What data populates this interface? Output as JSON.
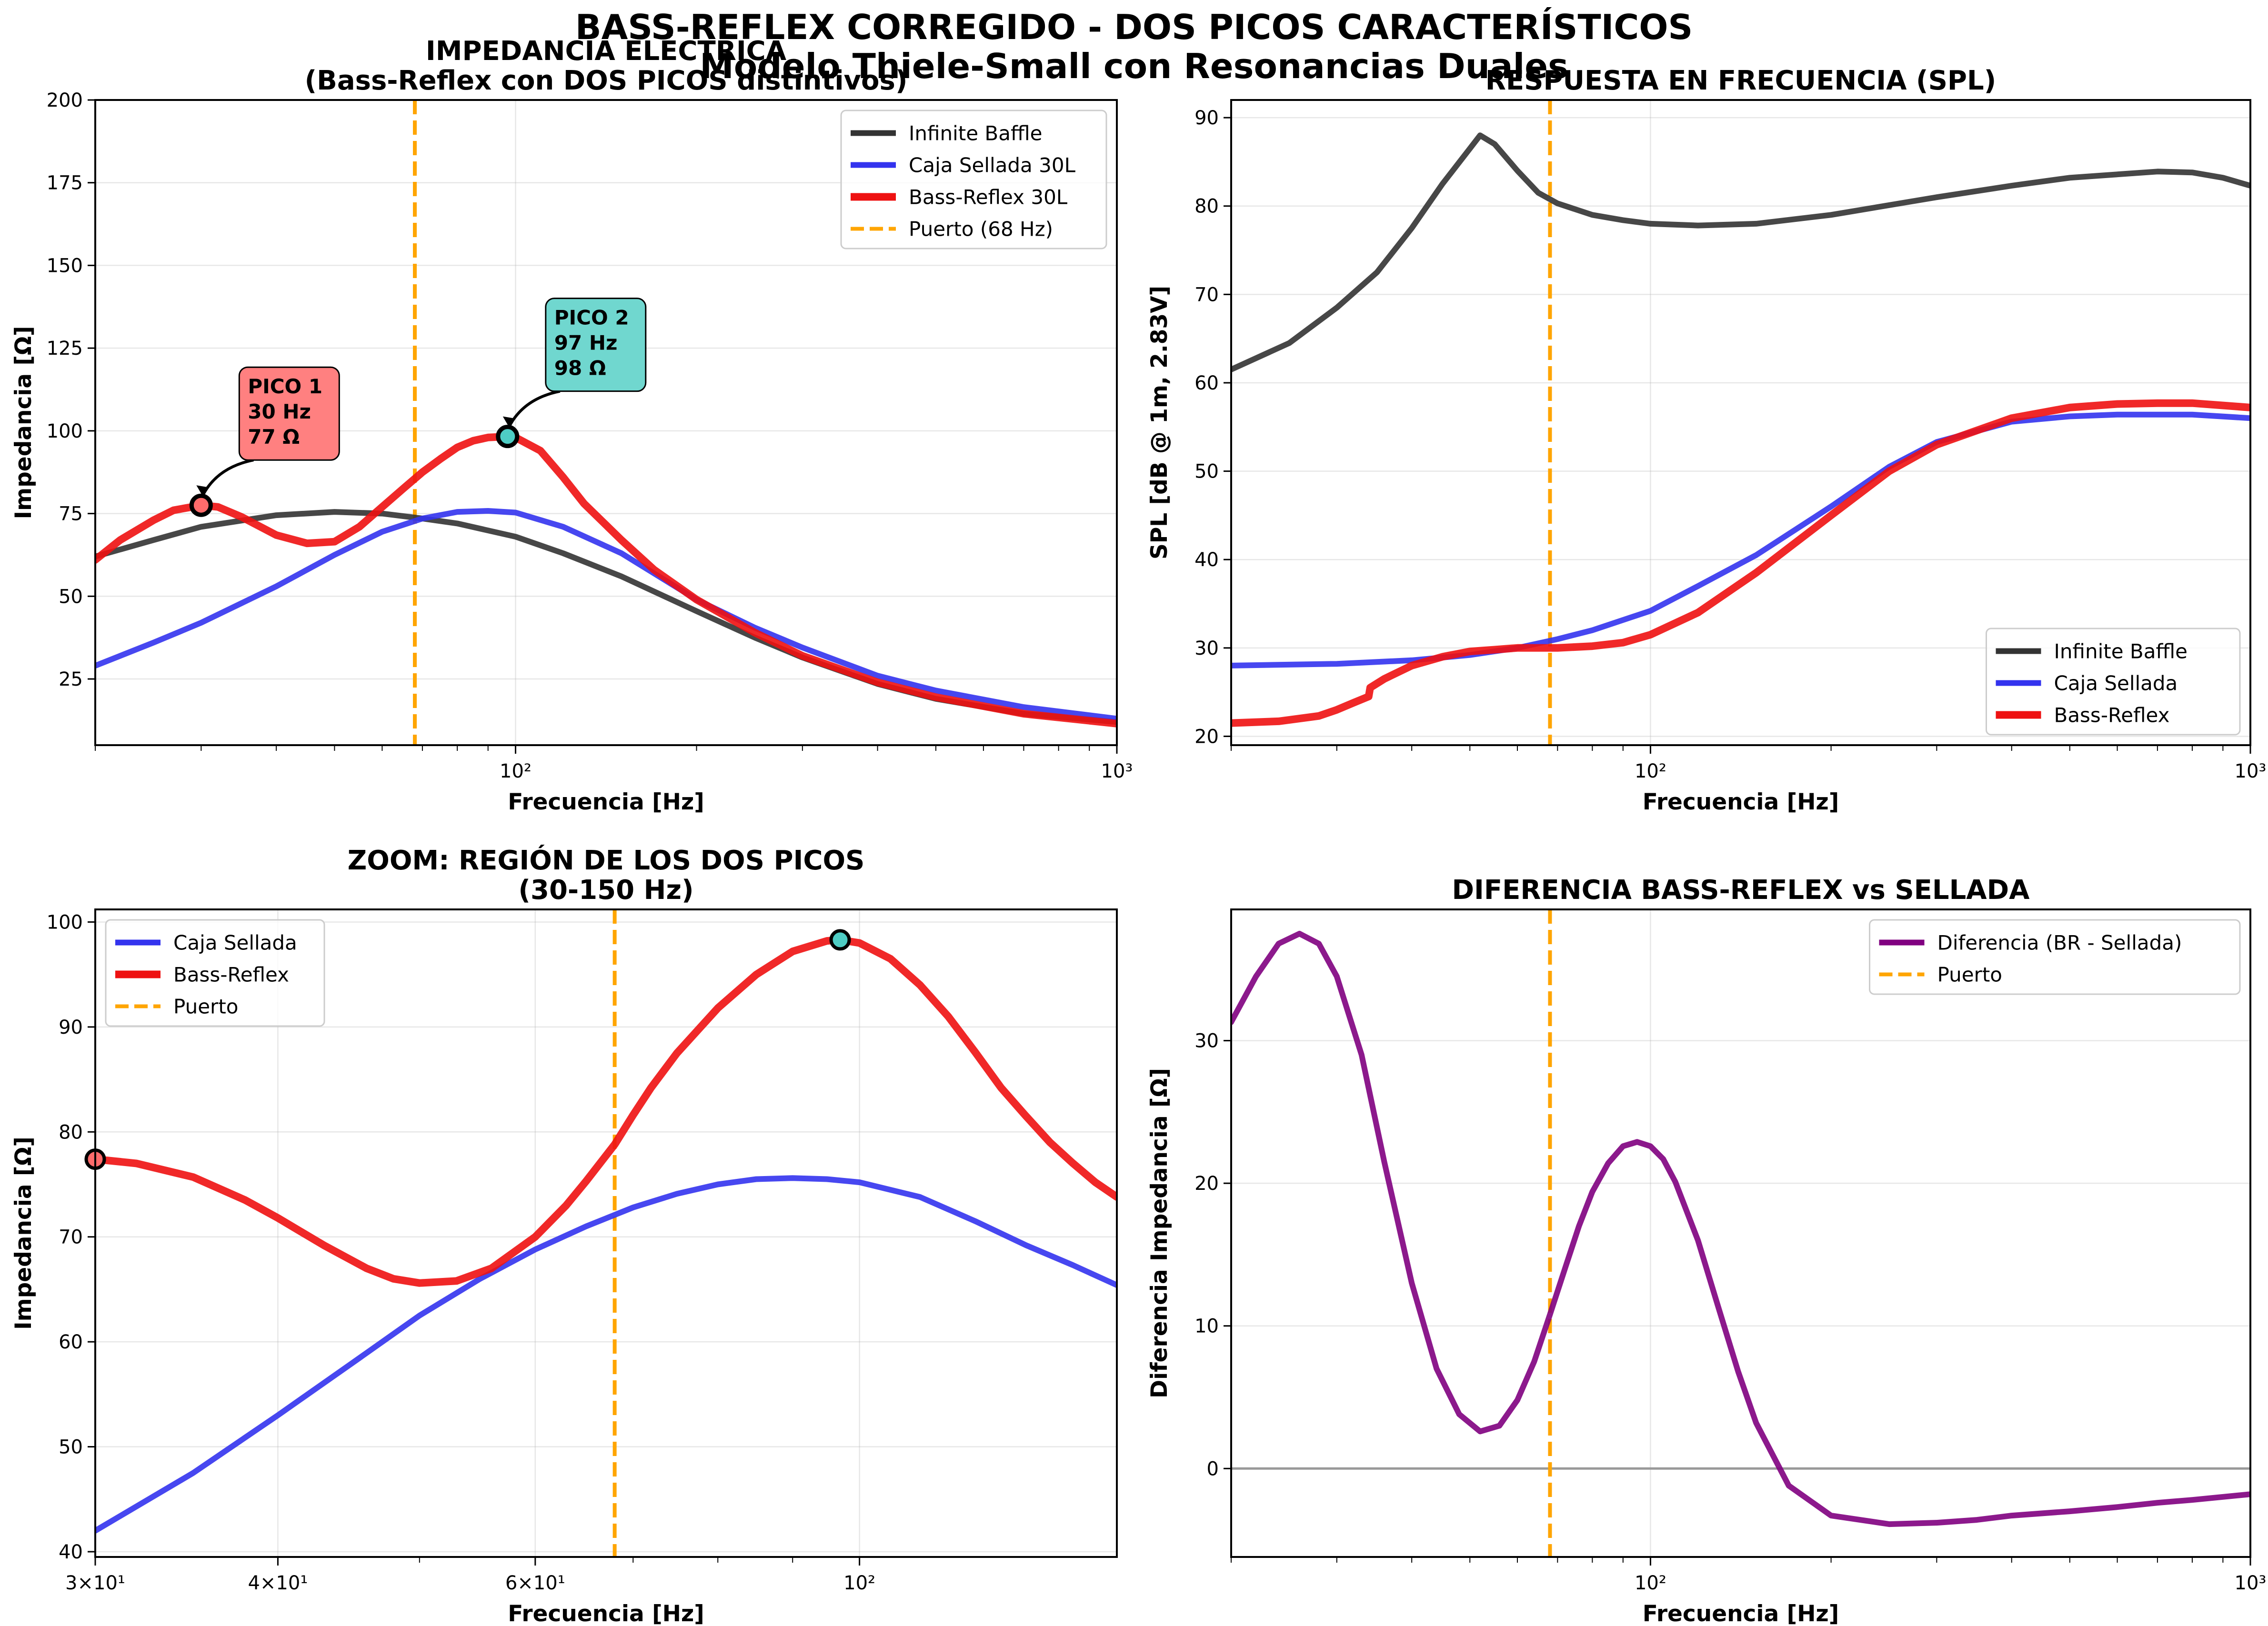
{
  "figure": {
    "suptitle": [
      "BASS-REFLEX CORREGIDO - DOS PICOS CARACTERÍSTICOS",
      "Modelo Thiele-Small con Resonancias Duales"
    ]
  },
  "chart_data": [
    {
      "type": "line",
      "title": [
        "IMPEDANCIA ELÉCTRICA",
        "(Bass-Reflex con DOS PICOS distintivos)"
      ],
      "xlabel": "Frecuencia [Hz]",
      "ylabel": "Impedancia [Ω]",
      "xscale": "log",
      "xlim": [
        20,
        1000
      ],
      "ylim": [
        5,
        200
      ],
      "yticks": [
        25,
        50,
        75,
        100,
        125,
        150,
        175,
        200
      ],
      "xticks": [
        {
          "value": 100,
          "label": "10²"
        },
        {
          "value": 1000,
          "label": "10³"
        }
      ],
      "grid": true,
      "legend": "top-right",
      "vline": {
        "x": 68,
        "name": "Puerto (68 Hz)",
        "color": "#FFA500"
      },
      "series": [
        {
          "name": "Infinite Baffle",
          "color": "#333333",
          "width": 12,
          "x": [
            20,
            25,
            30,
            40,
            50,
            60,
            70,
            80,
            100,
            120,
            150,
            200,
            250,
            300,
            400,
            500,
            700,
            1000
          ],
          "y": [
            62,
            67,
            71,
            74.5,
            75.5,
            75,
            73.5,
            72,
            68,
            63,
            56,
            45.5,
            37.5,
            31.5,
            23.5,
            19,
            14.5,
            12
          ]
        },
        {
          "name": "Caja Sellada 30L",
          "color": "#3333EE",
          "width": 12,
          "x": [
            20,
            25,
            30,
            40,
            50,
            60,
            70,
            80,
            90,
            100,
            120,
            150,
            200,
            250,
            300,
            400,
            500,
            700,
            1000
          ],
          "y": [
            29,
            36,
            42,
            53,
            62.5,
            69.5,
            73.5,
            75.5,
            75.8,
            75.3,
            71,
            63,
            49,
            40.5,
            34.5,
            26,
            21.5,
            16.5,
            13
          ]
        },
        {
          "name": "Bass-Reflex 30L",
          "color": "#EE1111",
          "width": 16,
          "x": [
            20,
            22,
            25,
            27,
            30,
            32,
            35,
            40,
            45,
            50,
            55,
            60,
            65,
            70,
            75,
            80,
            85,
            90,
            97,
            100,
            110,
            120,
            130,
            150,
            170,
            200,
            250,
            300,
            400,
            500,
            700,
            1000
          ],
          "y": [
            61,
            67,
            73,
            76,
            77.5,
            77,
            74,
            68.5,
            66,
            66.5,
            71,
            77,
            82.5,
            87.5,
            91.5,
            95,
            97,
            98,
            98.3,
            98,
            94,
            86,
            78,
            67,
            58,
            49,
            39,
            32,
            24,
            19.5,
            14.5,
            11.5
          ]
        }
      ],
      "annotations": [
        {
          "lines": [
            "PICO 1",
            "30 Hz",
            "77 Ω"
          ],
          "x": 30,
          "y": 77.5,
          "color": "#FF8080"
        },
        {
          "lines": [
            "PICO 2",
            "97 Hz",
            "98 Ω"
          ],
          "x": 97,
          "y": 98.3,
          "color": "#70D7CF"
        }
      ]
    },
    {
      "type": "line",
      "title": [
        "RESPUESTA EN FRECUENCIA (SPL)"
      ],
      "xlabel": "Frecuencia [Hz]",
      "ylabel": "SPL [dB @ 1m, 2.83V]",
      "xscale": "log",
      "xlim": [
        20,
        1000
      ],
      "ylim": [
        19,
        92
      ],
      "yticks": [
        20,
        30,
        40,
        50,
        60,
        70,
        80,
        90
      ],
      "xticks": [
        {
          "value": 100,
          "label": "10²"
        },
        {
          "value": 1000,
          "label": "10³"
        }
      ],
      "grid": true,
      "legend": "lower-right",
      "vline": {
        "x": 68,
        "name": "",
        "color": "#FFA500"
      },
      "series": [
        {
          "name": "Infinite Baffle",
          "color": "#333333",
          "width": 12,
          "x": [
            20,
            25,
            30,
            35,
            40,
            45,
            50,
            52,
            55,
            60,
            65,
            70,
            80,
            90,
            100,
            120,
            150,
            200,
            300,
            400,
            500,
            700,
            800,
            900,
            1000
          ],
          "y": [
            61.5,
            64.5,
            68.5,
            72.5,
            77.5,
            82.5,
            86.5,
            88,
            87,
            84,
            81.5,
            80.3,
            79,
            78.4,
            78,
            77.8,
            78,
            79,
            81,
            82.3,
            83.2,
            83.9,
            83.8,
            83.2,
            82.3
          ]
        },
        {
          "name": "Caja Sellada",
          "color": "#3333EE",
          "width": 12,
          "x": [
            20,
            30,
            40,
            50,
            60,
            70,
            80,
            100,
            120,
            150,
            200,
            250,
            300,
            400,
            500,
            600,
            700,
            800,
            1000
          ],
          "y": [
            28,
            28.2,
            28.6,
            29.2,
            30,
            31,
            32,
            34.2,
            37,
            40.5,
            46,
            50.5,
            53.3,
            55.6,
            56.2,
            56.4,
            56.4,
            56.4,
            56
          ]
        },
        {
          "name": "Bass-Reflex",
          "color": "#EE1111",
          "width": 16,
          "x": [
            20,
            24,
            28,
            30,
            32,
            33.9,
            34.1,
            36,
            40,
            45,
            50,
            55,
            60,
            65,
            70,
            80,
            90,
            100,
            120,
            150,
            200,
            250,
            300,
            400,
            500,
            600,
            700,
            800,
            1000
          ],
          "y": [
            21.5,
            21.7,
            22.3,
            23,
            23.8,
            24.5,
            25.5,
            26.5,
            28,
            29,
            29.6,
            29.8,
            30,
            30,
            30,
            30.2,
            30.6,
            31.5,
            34,
            38.5,
            45,
            50,
            53,
            56,
            57.2,
            57.6,
            57.7,
            57.7,
            57.2
          ]
        }
      ]
    },
    {
      "type": "line",
      "title": [
        "ZOOM: REGIÓN DE LOS DOS PICOS",
        "(30-150 Hz)"
      ],
      "xlabel": "Frecuencia [Hz]",
      "ylabel": "Impedancia [Ω]",
      "xscale": "log",
      "xlim": [
        30,
        150
      ],
      "ylim": [
        39.5,
        101.2
      ],
      "yticks": [
        40,
        50,
        60,
        70,
        80,
        90,
        100
      ],
      "xticks": [
        {
          "value": 30,
          "label": "3×10¹"
        },
        {
          "value": 40,
          "label": "4×10¹"
        },
        {
          "value": 60,
          "label": "6×10¹"
        },
        {
          "value": 100,
          "label": "10²"
        }
      ],
      "grid": true,
      "legend": "top-left",
      "vline": {
        "x": 68,
        "name": "Puerto",
        "color": "#FFA500"
      },
      "series": [
        {
          "name": "Caja Sellada",
          "color": "#3333EE",
          "width": 12,
          "x": [
            30,
            35,
            40,
            45,
            50,
            55,
            60,
            65,
            70,
            75,
            80,
            85,
            90,
            95,
            100,
            110,
            120,
            130,
            140,
            150
          ],
          "y": [
            42,
            47.5,
            53,
            58,
            62.5,
            66,
            68.8,
            71,
            72.8,
            74.1,
            75,
            75.5,
            75.6,
            75.5,
            75.2,
            73.8,
            71.5,
            69.2,
            67.3,
            65.4
          ]
        },
        {
          "name": "Bass-Reflex",
          "color": "#EE1111",
          "width": 16,
          "x": [
            30,
            32,
            35,
            38,
            40,
            43,
            46,
            48,
            50,
            53,
            56,
            60,
            63,
            65,
            68,
            70,
            72,
            75,
            80,
            85,
            90,
            95,
            97,
            100,
            105,
            110,
            115,
            120,
            125,
            130,
            135,
            140,
            145,
            150
          ],
          "y": [
            77.4,
            77,
            75.7,
            73.5,
            71.8,
            69.2,
            67,
            66,
            65.6,
            65.8,
            67,
            70,
            73,
            75.3,
            78.8,
            81.6,
            84.2,
            87.5,
            91.8,
            95,
            97.2,
            98.2,
            98.3,
            98,
            96.5,
            94,
            91,
            87.6,
            84.2,
            81.5,
            79,
            77,
            75.2,
            73.8
          ]
        }
      ],
      "markers": [
        {
          "x": 30,
          "y": 77.4,
          "color": "#FF6B6B"
        },
        {
          "x": 97,
          "y": 98.3,
          "color": "#4ECDC4"
        }
      ]
    },
    {
      "type": "line",
      "title": [
        "DIFERENCIA BASS-REFLEX vs SELLADA"
      ],
      "xlabel": "Frecuencia [Hz]",
      "ylabel": "Diferencia Impedancia [Ω]",
      "xscale": "log",
      "xlim": [
        20,
        1000
      ],
      "ylim": [
        -6.2,
        39.2
      ],
      "yticks": [
        0,
        10,
        20,
        30
      ],
      "xticks": [
        {
          "value": 100,
          "label": "10²"
        },
        {
          "value": 1000,
          "label": "10³"
        }
      ],
      "grid": true,
      "legend": "top-right",
      "hline": {
        "y": 0,
        "color": "#999999"
      },
      "vline": {
        "x": 68,
        "name": "Puerto",
        "color": "#FFA500"
      },
      "series": [
        {
          "name": "Diferencia (BR - Sellada)",
          "color": "#800080",
          "width": 12,
          "x": [
            20,
            22,
            24,
            26,
            28,
            30,
            33,
            36,
            40,
            44,
            48,
            52,
            56,
            60,
            64,
            68,
            72,
            76,
            80,
            85,
            90,
            95,
            100,
            105,
            110,
            120,
            130,
            140,
            150,
            170,
            200,
            250,
            300,
            350,
            400,
            500,
            600,
            700,
            800,
            1000
          ],
          "y": [
            31.3,
            34.5,
            36.8,
            37.5,
            36.8,
            34.5,
            29,
            21.5,
            13,
            7,
            3.8,
            2.6,
            3,
            4.8,
            7.5,
            10.8,
            14,
            17,
            19.4,
            21.4,
            22.6,
            22.9,
            22.6,
            21.7,
            20.1,
            16,
            11.2,
            6.8,
            3.2,
            -1.2,
            -3.3,
            -3.9,
            -3.8,
            -3.6,
            -3.3,
            -3,
            -2.7,
            -2.4,
            -2.2,
            -1.8
          ]
        }
      ]
    }
  ]
}
